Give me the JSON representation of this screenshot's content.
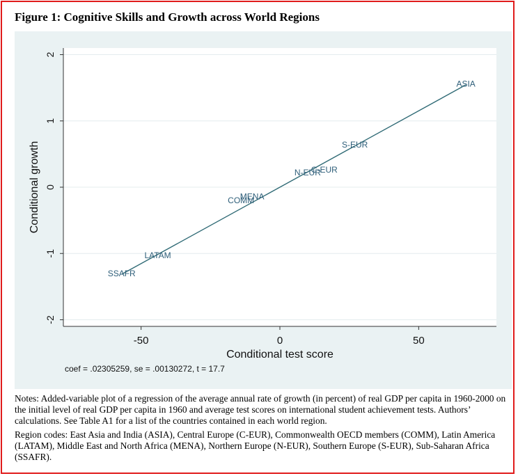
{
  "figure": {
    "title": "Figure 1:  Cognitive Skills and Growth across World Regions"
  },
  "chart_data": {
    "type": "scatter",
    "title": "",
    "xlabel": "Conditional test score",
    "ylabel": "Conditional growth",
    "xlim": [
      -78,
      78
    ],
    "ylim": [
      -2.1,
      2.1
    ],
    "xticks": [
      -50,
      0,
      50
    ],
    "xtick_labels": [
      "-50",
      "0",
      "50"
    ],
    "yticks": [
      -2,
      -1,
      0,
      1,
      2
    ],
    "ytick_labels": [
      "-2",
      "-1",
      "0",
      "1",
      "2"
    ],
    "grid": true,
    "points": [
      {
        "label": "ASIA",
        "x": 67,
        "y": 1.56
      },
      {
        "label": "S-EUR",
        "x": 27,
        "y": 0.64
      },
      {
        "label": "N-EUR",
        "x": 10,
        "y": 0.22
      },
      {
        "label": "C-EUR",
        "x": 16,
        "y": 0.26
      },
      {
        "label": "MENA",
        "x": -10,
        "y": -0.14
      },
      {
        "label": "COMM",
        "x": -14,
        "y": -0.2
      },
      {
        "label": "LATAM",
        "x": -44,
        "y": -1.03
      },
      {
        "label": "SSAFR",
        "x": -57,
        "y": -1.3
      }
    ],
    "fit_line": {
      "x": [
        -57,
        67
      ],
      "slope": 0.02305259,
      "intercept": 0
    },
    "annotation": "coef = .02305259, se = .00130272, t = 17.7",
    "colors": {
      "line": "#2f6a75",
      "labels": "#2f5f7a",
      "panel": "#eaf2f3"
    }
  },
  "notes": {
    "paragraph1": "Notes:  Added-variable plot of a regression of the average annual rate of growth (in percent) of real GDP per capita in 1960-2000 on the initial level of real GDP per capita in 1960 and average test scores on international student achievement tests.  Authors’ calculations.  See Table A1 for a list of the countries contained in each world region.",
    "paragraph2": "Region codes: East Asia and India (ASIA), Central Europe (C-EUR), Commonwealth OECD members (COMM), Latin America (LATAM), Middle East and North Africa (MENA), Northern Europe (N-EUR), Southern Europe (S-EUR), Sub-Saharan Africa (SSAFR)."
  }
}
